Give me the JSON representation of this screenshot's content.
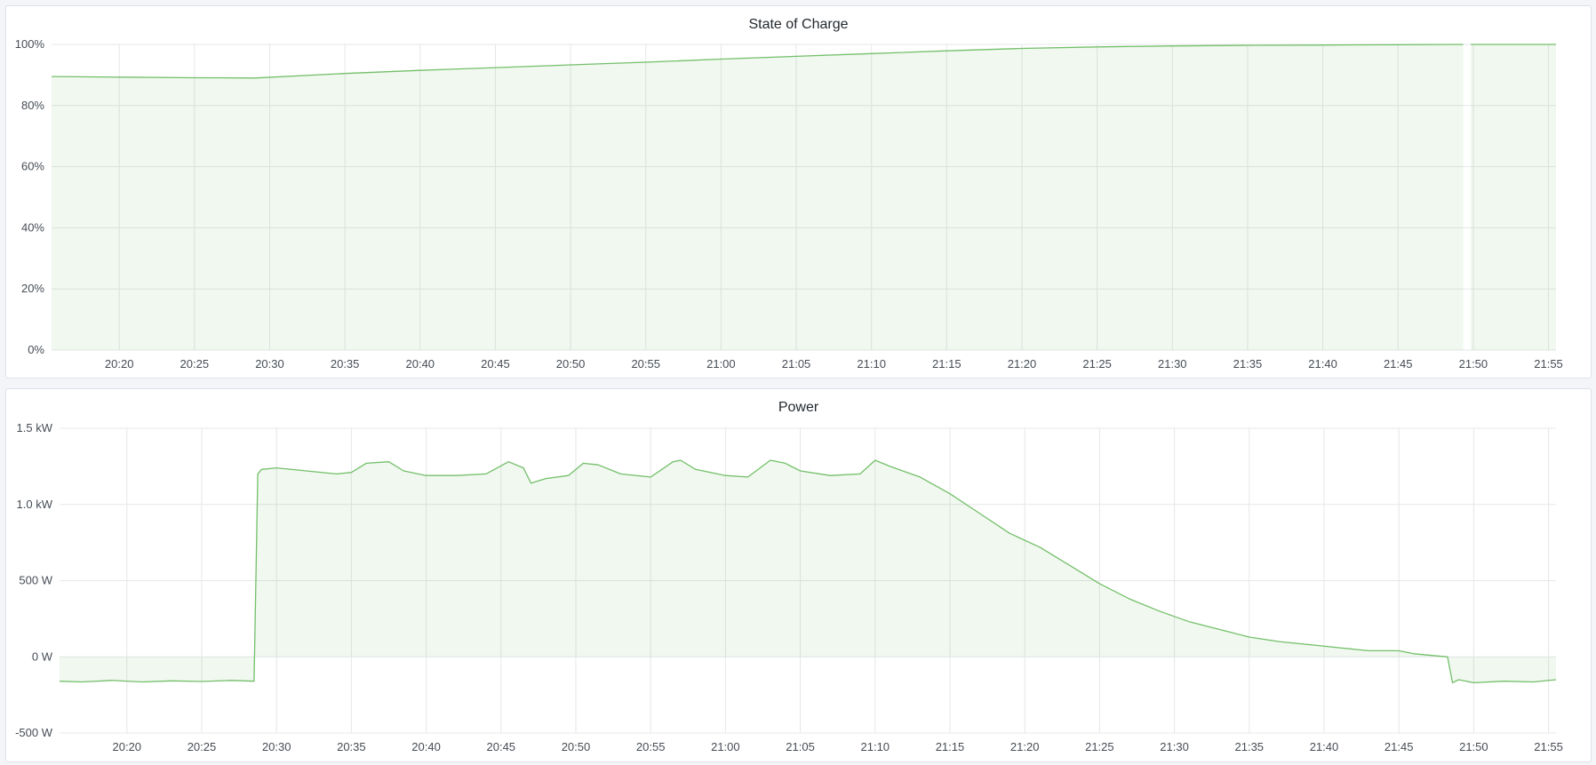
{
  "colors": {
    "line": "#73bf69",
    "fill": "rgba(115,191,105,0.11)",
    "grid": "#e6e7e9"
  },
  "chart_data": [
    {
      "type": "area",
      "title": "State of Charge",
      "x_ticks": [
        "20:20",
        "20:25",
        "20:30",
        "20:35",
        "20:40",
        "20:45",
        "20:50",
        "20:55",
        "21:00",
        "21:05",
        "21:10",
        "21:15",
        "21:20",
        "21:25",
        "21:30",
        "21:35",
        "21:40",
        "21:45",
        "21:50",
        "21:55"
      ],
      "y_ticks": [
        "0%",
        "20%",
        "40%",
        "60%",
        "80%",
        "100%"
      ],
      "xlim": [
        "20:15:30",
        "21:55:30"
      ],
      "ylim": [
        0,
        100
      ],
      "grid": true,
      "series": [
        {
          "x": [
            "20:15:30",
            "20:20",
            "20:25",
            "20:29",
            "20:35",
            "20:40",
            "20:45",
            "20:50",
            "20:55",
            "21:00",
            "21:05",
            "21:10",
            "21:15",
            "21:20",
            "21:25",
            "21:30",
            "21:35",
            "21:40",
            "21:45",
            "21:49:20",
            "21:49:50",
            "21:55:30"
          ],
          "y": [
            89.5,
            89.3,
            89.1,
            89.0,
            90.5,
            91.5,
            92.4,
            93.3,
            94.2,
            95.2,
            96.1,
            97.0,
            97.9,
            98.7,
            99.2,
            99.5,
            99.7,
            99.8,
            99.9,
            100,
            100,
            100
          ],
          "gaps_after": [
            "21:49:20"
          ]
        }
      ]
    },
    {
      "type": "area",
      "title": "Power",
      "x_ticks": [
        "20:20",
        "20:25",
        "20:30",
        "20:35",
        "20:40",
        "20:45",
        "20:50",
        "20:55",
        "21:00",
        "21:05",
        "21:10",
        "21:15",
        "21:20",
        "21:25",
        "21:30",
        "21:35",
        "21:40",
        "21:45",
        "21:50",
        "21:55"
      ],
      "y_ticks": [
        "-500 W",
        "0 W",
        "500 W",
        "1.0 kW",
        "1.5 kW"
      ],
      "y_tick_values": [
        -500,
        0,
        500,
        1000,
        1500
      ],
      "xlim": [
        "20:15:30",
        "21:55:30"
      ],
      "ylim": [
        -500,
        1500
      ],
      "unit": "W",
      "grid": true,
      "series": [
        {
          "x": [
            "20:15:30",
            "20:17",
            "20:19",
            "20:21",
            "20:23",
            "20:25",
            "20:27",
            "20:28:30",
            "20:28:45",
            "20:29",
            "20:30",
            "20:32",
            "20:34",
            "20:35",
            "20:36",
            "20:37:30",
            "20:38:30",
            "20:40",
            "20:42",
            "20:44",
            "20:45:30",
            "20:46:30",
            "20:47",
            "20:48",
            "20:49:30",
            "20:50:30",
            "20:51:30",
            "20:53",
            "20:55",
            "20:56:30",
            "20:57",
            "20:58",
            "21:00",
            "21:01:30",
            "21:03",
            "21:04",
            "21:05",
            "21:07",
            "21:09",
            "21:10",
            "21:11",
            "21:13",
            "21:15",
            "21:17",
            "21:19",
            "21:21",
            "21:23",
            "21:25",
            "21:27",
            "21:29",
            "21:31",
            "21:33",
            "21:35",
            "21:37",
            "21:39",
            "21:41",
            "21:43",
            "21:45",
            "21:46",
            "21:48:15",
            "21:48:35",
            "21:49",
            "21:50",
            "21:52",
            "21:54",
            "21:55:30"
          ],
          "y": [
            -160,
            -165,
            -155,
            -165,
            -158,
            -162,
            -155,
            -160,
            1200,
            1230,
            1240,
            1220,
            1200,
            1210,
            1270,
            1280,
            1220,
            1190,
            1190,
            1200,
            1280,
            1240,
            1140,
            1170,
            1190,
            1270,
            1260,
            1200,
            1180,
            1280,
            1290,
            1230,
            1190,
            1180,
            1290,
            1270,
            1220,
            1190,
            1200,
            1290,
            1250,
            1180,
            1070,
            940,
            810,
            720,
            600,
            480,
            380,
            300,
            230,
            180,
            130,
            100,
            80,
            60,
            40,
            40,
            20,
            0,
            -170,
            -150,
            -170,
            -160,
            -165,
            -150
          ]
        }
      ]
    }
  ]
}
